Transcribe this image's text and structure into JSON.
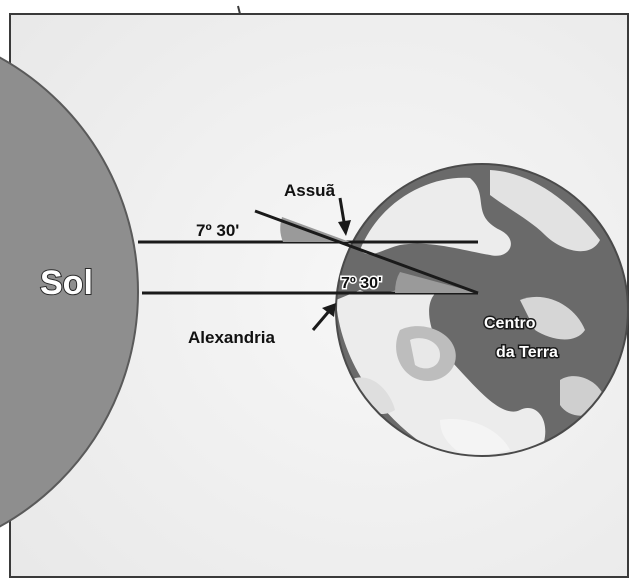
{
  "labels": {
    "sun": "Sol",
    "syene": "Assuã",
    "alexandria": "Alexandria",
    "angle_top": "7º 30'",
    "angle_center": "7º 30'",
    "earth_center_line1": "Centro",
    "earth_center_line2": "da Terra"
  },
  "colors": {
    "background": "#f1f1f1",
    "frame": "#3a3a3a",
    "sun_fill": "#8e8e8e",
    "ray_line": "#1a1a1a",
    "angle_wedge": "#9a9a9a",
    "earth_ocean": "#6a6a6a",
    "earth_land": "#ececec"
  }
}
